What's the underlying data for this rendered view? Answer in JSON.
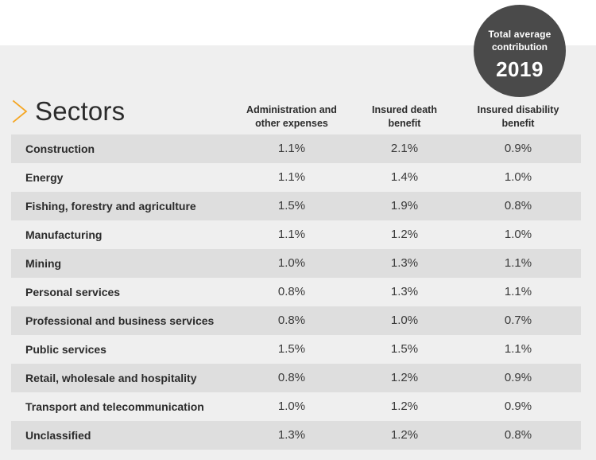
{
  "badge": {
    "line1": "Total average",
    "line2": "contribution",
    "year": "2019"
  },
  "title": "Sectors",
  "colors": {
    "accent": "#f5a623",
    "badge": "#4a4a4a",
    "panel": "#efefef",
    "shade": "#dedede"
  },
  "icons": {
    "title_marker": "chevron-right-icon"
  },
  "chart_data": {
    "type": "table",
    "title": "Total average contribution 2019",
    "row_header": "Sectors",
    "columns": [
      {
        "line1": "Administration and",
        "line2": "other expenses"
      },
      {
        "line1": "Insured death",
        "line2": "benefit"
      },
      {
        "line1": "Insured disability",
        "line2": "benefit"
      }
    ],
    "rows": [
      {
        "sector": "Construction",
        "values": [
          "1.1%",
          "2.1%",
          "0.9%"
        ]
      },
      {
        "sector": "Energy",
        "values": [
          "1.1%",
          "1.4%",
          "1.0%"
        ]
      },
      {
        "sector": "Fishing, forestry and agriculture",
        "values": [
          "1.5%",
          "1.9%",
          "0.8%"
        ]
      },
      {
        "sector": "Manufacturing",
        "values": [
          "1.1%",
          "1.2%",
          "1.0%"
        ]
      },
      {
        "sector": "Mining",
        "values": [
          "1.0%",
          "1.3%",
          "1.1%"
        ]
      },
      {
        "sector": "Personal services",
        "values": [
          "0.8%",
          "1.3%",
          "1.1%"
        ]
      },
      {
        "sector": "Professional and business services",
        "values": [
          "0.8%",
          "1.0%",
          "0.7%"
        ]
      },
      {
        "sector": "Public services",
        "values": [
          "1.5%",
          "1.5%",
          "1.1%"
        ]
      },
      {
        "sector": "Retail, wholesale and hospitality",
        "values": [
          "0.8%",
          "1.2%",
          "0.9%"
        ]
      },
      {
        "sector": "Transport and telecommunication",
        "values": [
          "1.0%",
          "1.2%",
          "0.9%"
        ]
      },
      {
        "sector": "Unclassified",
        "values": [
          "1.3%",
          "1.2%",
          "0.8%"
        ]
      }
    ]
  }
}
